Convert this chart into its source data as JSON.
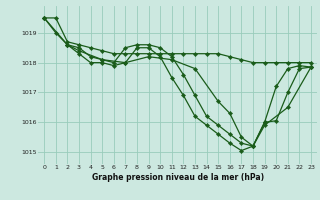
{
  "background_color": "#cce8e0",
  "grid_color": "#99ccbb",
  "line_color": "#1a5c1a",
  "xlim": [
    -0.5,
    23.5
  ],
  "ylim": [
    1014.6,
    1019.9
  ],
  "yticks": [
    1015,
    1016,
    1017,
    1018,
    1019
  ],
  "xticks": [
    0,
    1,
    2,
    3,
    4,
    5,
    6,
    7,
    8,
    9,
    10,
    11,
    12,
    13,
    14,
    15,
    16,
    17,
    18,
    19,
    20,
    21,
    22,
    23
  ],
  "xlabel": "Graphe pression niveau de la mer (hPa)",
  "series": [
    {
      "x": [
        0,
        1,
        2,
        3,
        4,
        5,
        6,
        7,
        8,
        9,
        10,
        11,
        12,
        13,
        14,
        15,
        16,
        17,
        18,
        19,
        20,
        21,
        22,
        23
      ],
      "y": [
        1019.5,
        1019.5,
        1018.7,
        1018.6,
        1018.5,
        1018.4,
        1018.3,
        1018.3,
        1018.3,
        1018.3,
        1018.3,
        1018.3,
        1018.3,
        1018.3,
        1018.3,
        1018.3,
        1018.2,
        1018.1,
        1018.0,
        1018.0,
        1018.0,
        1018.0,
        1018.0,
        1018.0
      ]
    },
    {
      "x": [
        0,
        1,
        2,
        3,
        4,
        5,
        6,
        7,
        8,
        9,
        10,
        11,
        12,
        13,
        14,
        15,
        16,
        17,
        18,
        19,
        20,
        21,
        22,
        23
      ],
      "y": [
        1019.5,
        1019.0,
        1018.6,
        1018.5,
        1018.2,
        1018.1,
        1018.0,
        1018.5,
        1018.6,
        1018.6,
        1018.5,
        1018.2,
        1017.6,
        1016.9,
        1016.2,
        1015.9,
        1015.6,
        1015.3,
        1015.2,
        1016.0,
        1017.2,
        1017.8,
        1017.9,
        1017.85
      ]
    },
    {
      "x": [
        2,
        3,
        4,
        5,
        6,
        7,
        8,
        9,
        10,
        11,
        12,
        13,
        14,
        15,
        16,
        17,
        18,
        19,
        20,
        21,
        22,
        23
      ],
      "y": [
        1018.6,
        1018.3,
        1018.0,
        1018.0,
        1017.9,
        1018.0,
        1018.5,
        1018.5,
        1018.2,
        1017.5,
        1016.9,
        1016.2,
        1015.9,
        1015.6,
        1015.3,
        1015.05,
        1015.2,
        1016.0,
        1016.05,
        1017.0,
        1017.8,
        1017.85
      ]
    },
    {
      "x": [
        0,
        2,
        3,
        5,
        7,
        9,
        11,
        13,
        15,
        16,
        17,
        18,
        19,
        21,
        23
      ],
      "y": [
        1019.5,
        1018.6,
        1018.4,
        1018.1,
        1018.0,
        1018.2,
        1018.1,
        1017.8,
        1016.7,
        1016.3,
        1015.5,
        1015.2,
        1015.9,
        1016.5,
        1017.85
      ]
    }
  ]
}
